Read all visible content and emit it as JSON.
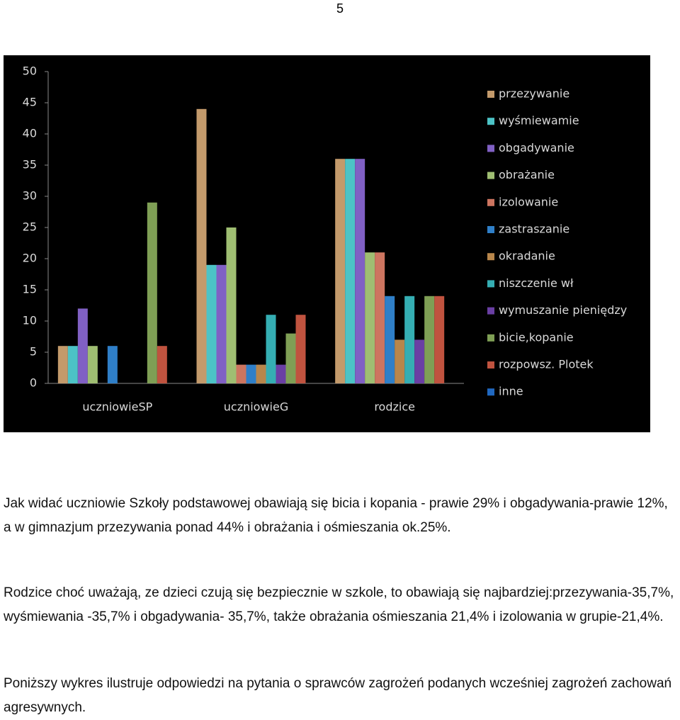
{
  "page_number": "5",
  "chart_data": {
    "type": "bar",
    "categories": [
      "uczniowieSP",
      "uczniowieG",
      "rodzice"
    ],
    "series": [
      {
        "name": "przezywanie",
        "color": "#c39a6b",
        "values": [
          6,
          44,
          36
        ]
      },
      {
        "name": "wyśmiewamie",
        "color": "#4cc3c6",
        "values": [
          6,
          19,
          36
        ]
      },
      {
        "name": "obgadywanie",
        "color": "#8060c4",
        "values": [
          12,
          19,
          36
        ]
      },
      {
        "name": "obrażanie",
        "color": "#9fbe72",
        "values": [
          6,
          25,
          21
        ]
      },
      {
        "name": "izolowanie",
        "color": "#cd7560",
        "values": [
          0,
          3,
          21
        ]
      },
      {
        "name": "zastraszanie",
        "color": "#2f7fc8",
        "values": [
          6,
          3,
          14
        ]
      },
      {
        "name": "okradanie",
        "color": "#b8864b",
        "values": [
          0,
          3,
          7
        ]
      },
      {
        "name": "niszczenie wł",
        "color": "#35aeb3",
        "values": [
          0,
          11,
          14
        ]
      },
      {
        "name": "wymuszanie pieniędzy",
        "color": "#6a3fa4",
        "values": [
          0,
          3,
          7
        ]
      },
      {
        "name": "bicie,kopanie",
        "color": "#7f9f55",
        "values": [
          29,
          8,
          14
        ]
      },
      {
        "name": "rozpowsz. Plotek",
        "color": "#c0533f",
        "values": [
          6,
          11,
          14
        ]
      },
      {
        "name": "inne",
        "color": "#2068c0",
        "values": [
          0,
          0,
          0
        ]
      }
    ],
    "ylim": [
      0,
      50
    ],
    "yticks": [
      0,
      5,
      10,
      15,
      20,
      25,
      30,
      35,
      40,
      45,
      50
    ],
    "grid": false,
    "legend": "right"
  },
  "paragraphs": [
    "Jak widać uczniowie Szkoły podstawowej obawiają się bicia i kopania - prawie 29% i obgadywania-prawie 12%, a w gimnazjum przezywania ponad 44% i obrażania i ośmieszania ok.25%.",
    "Rodzice choć uważają, ze dzieci czują się bezpiecznie w szkole, to obawiają się najbardziej:przezywania-35,7%, wyśmiewania -35,7% i obgadywania- 35,7%,  także obrażania ośmieszania 21,4% i izolowania w grupie-21,4%.",
    "Poniższy wykres ilustruje odpowiedzi na pytania o sprawców zagrożeń podanych wcześniej zagrożeń zachowań agresywnych."
  ]
}
